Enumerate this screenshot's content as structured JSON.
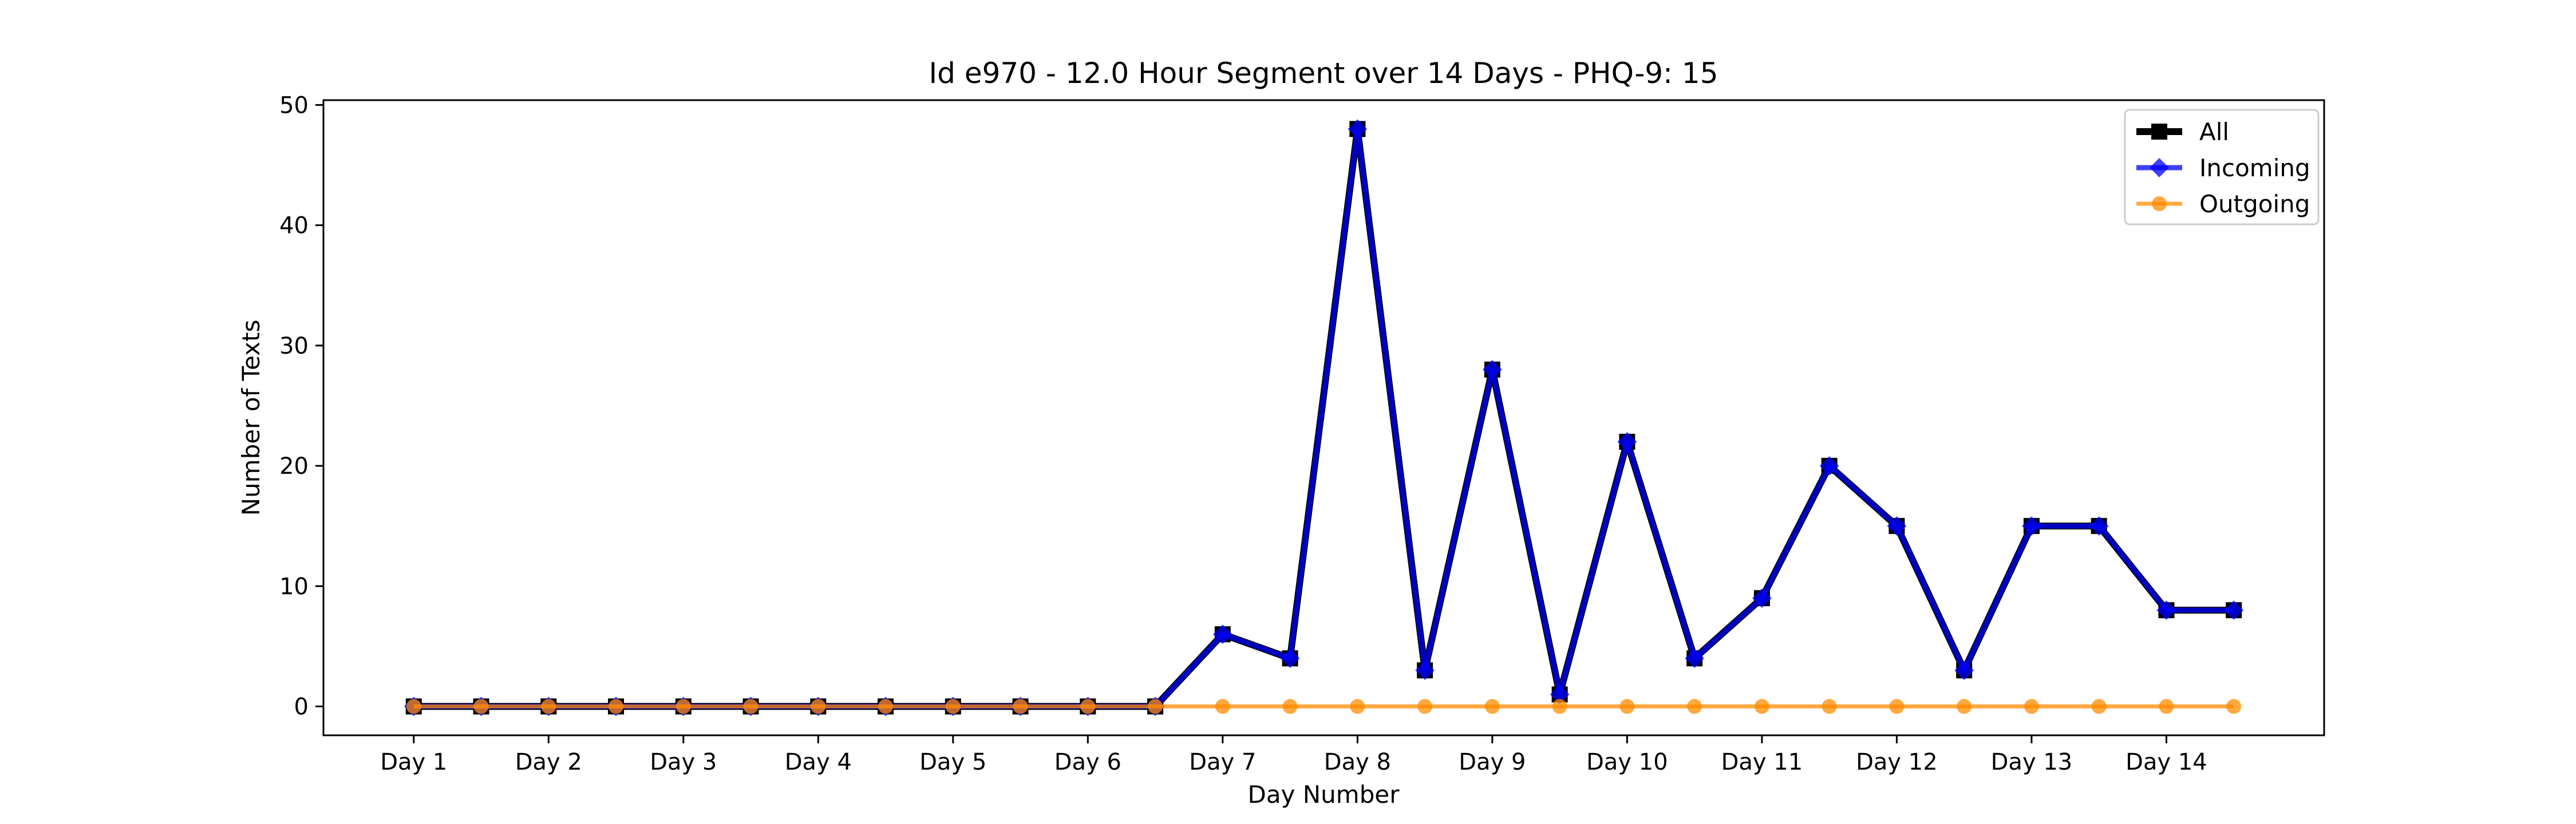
{
  "chart_data": {
    "type": "line",
    "title": "Id e970 - 12.0 Hour Segment over 14 Days - PHQ-9: 15",
    "xlabel": "Day Number",
    "ylabel": "Number of Texts",
    "ylim": [
      -2.4,
      50.4
    ],
    "yticks": [
      0,
      10,
      20,
      30,
      40,
      50
    ],
    "categories": [
      "Day 1",
      "Day 2",
      "Day 3",
      "Day 4",
      "Day 5",
      "Day 6",
      "Day 7",
      "Day 8",
      "Day 9",
      "Day 10",
      "Day 11",
      "Day 12",
      "Day 13",
      "Day 14"
    ],
    "x": [
      1,
      1.5,
      2,
      2.5,
      3,
      3.5,
      4,
      4.5,
      5,
      5.5,
      6,
      6.5,
      7,
      7.5,
      8,
      8.5,
      9,
      9.5,
      10,
      10.5,
      11,
      11.5,
      12,
      12.5,
      13,
      13.5,
      14,
      14.5
    ],
    "grid": false,
    "legend_position": "top-right",
    "series": [
      {
        "name": "All",
        "color": "#000000",
        "marker": "square",
        "values": [
          0,
          0,
          0,
          0,
          0,
          0,
          0,
          0,
          0,
          0,
          0,
          0,
          6,
          4,
          48,
          3,
          28,
          1,
          22,
          4,
          9,
          20,
          15,
          3,
          15,
          15,
          8,
          8
        ]
      },
      {
        "name": "Incoming",
        "color": "#0000ff",
        "marker": "diamond",
        "values": [
          0,
          0,
          0,
          0,
          0,
          0,
          0,
          0,
          0,
          0,
          0,
          0,
          6,
          4,
          48,
          3,
          28,
          1,
          22,
          4,
          9,
          20,
          15,
          3,
          15,
          15,
          8,
          8
        ]
      },
      {
        "name": "Outgoing",
        "color": "#ff8c00",
        "marker": "circle",
        "values": [
          0,
          0,
          0,
          0,
          0,
          0,
          0,
          0,
          0,
          0,
          0,
          0,
          0,
          0,
          0,
          0,
          0,
          0,
          0,
          0,
          0,
          0,
          0,
          0,
          0,
          0,
          0,
          0
        ]
      }
    ]
  }
}
